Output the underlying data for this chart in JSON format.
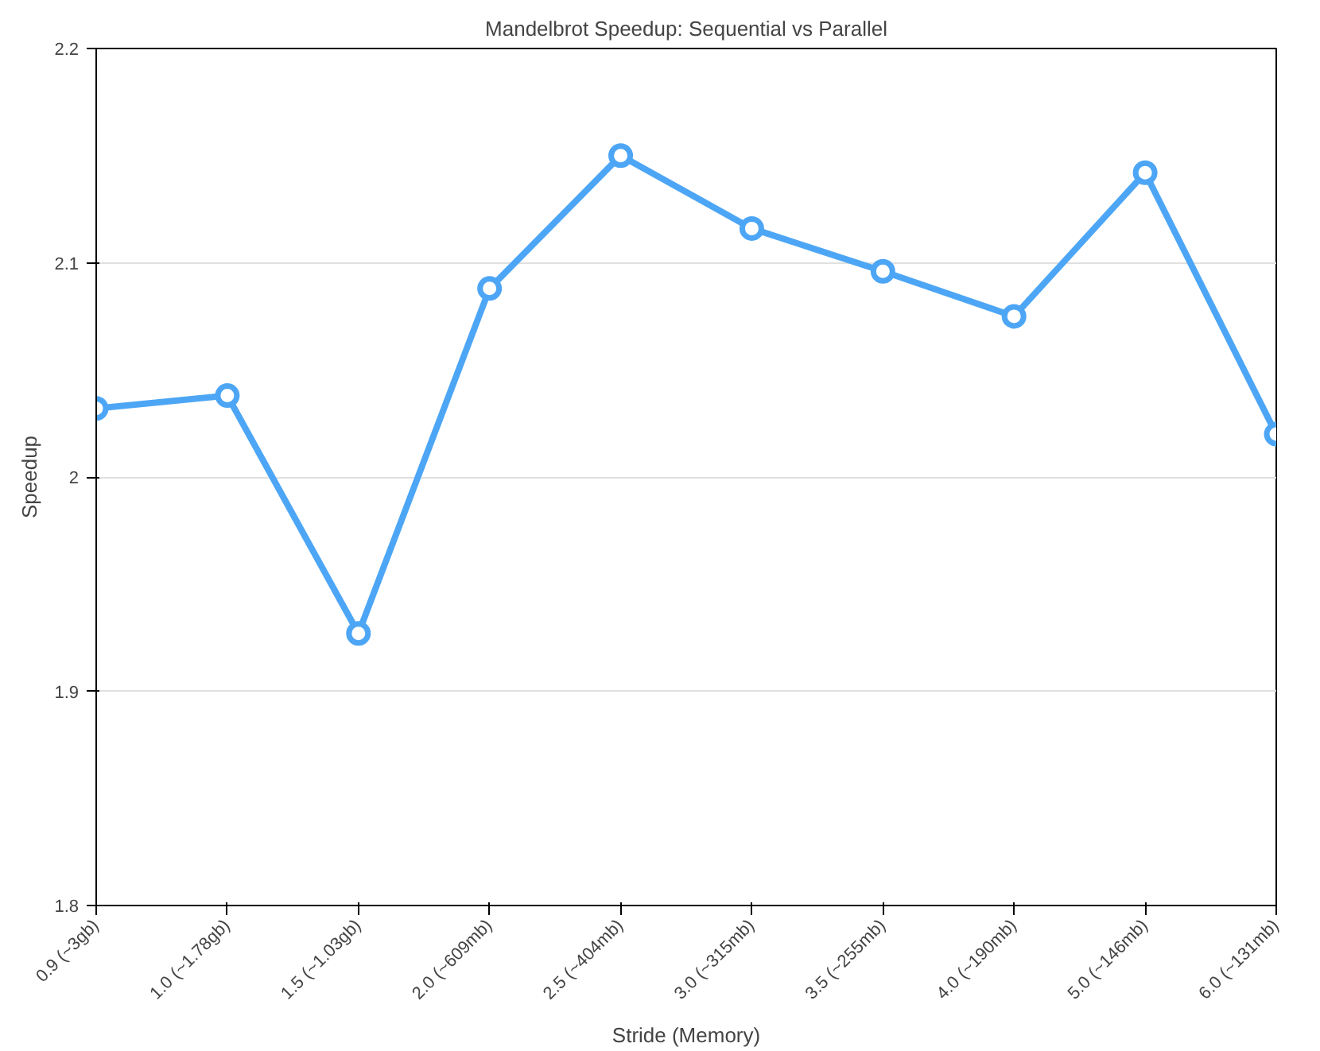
{
  "chart_data": {
    "type": "line",
    "title": "Mandelbrot Speedup: Sequential vs Parallel",
    "xlabel": "Stride (Memory)",
    "ylabel": "Speedup",
    "categories": [
      "0.9 (~3gb)",
      "1.0 (~1.78gb)",
      "1.5 (~1.03gb)",
      "2.0 (~609mb)",
      "2.5 (~404mb)",
      "3.0 (~315mb)",
      "3.5 (~255mb)",
      "4.0 (~190mb)",
      "5.0 (~146mb)",
      "6.0 (~131mb)"
    ],
    "series": [
      {
        "color": "#4da6f5",
        "values": [
          2.032,
          2.038,
          1.927,
          2.088,
          2.15,
          2.116,
          2.096,
          2.075,
          2.142,
          2.02
        ]
      }
    ],
    "ylim": [
      1.8,
      2.2
    ],
    "yticks": [
      1.8,
      1.9,
      {
        "value": 2.0,
        "label": "2"
      },
      2.1,
      2.2
    ],
    "grid": "y",
    "marker": "circle",
    "line_style": "solid"
  }
}
